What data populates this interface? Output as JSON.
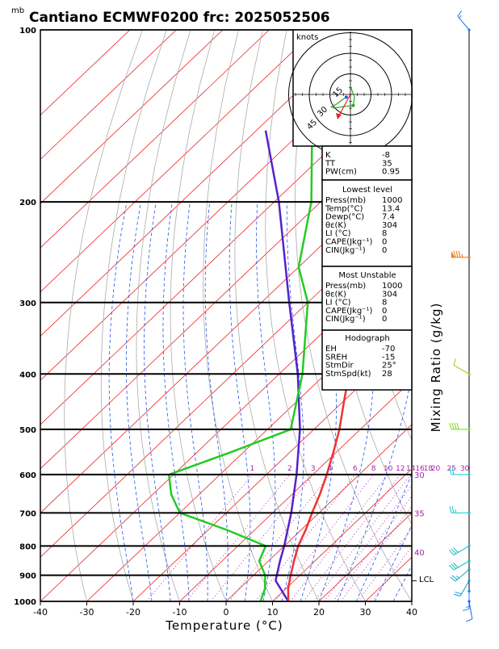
{
  "title": "Cantiano ECMWF0200  frc: 2025052506",
  "pressure_unit": "mb",
  "x_axis_label": "Temperature (°C)",
  "mixing_ratio_label": "Mixing Ratio (g/kg)",
  "hodograph": {
    "unit_label": "knots",
    "ring_labels": [
      "15",
      "30",
      "45"
    ]
  },
  "indices": [
    {
      "label": "K",
      "value": "-8"
    },
    {
      "label": "TT",
      "value": "35"
    },
    {
      "label": "PW(cm)",
      "value": "0.95"
    }
  ],
  "lowest_level": {
    "title": "Lowest level",
    "rows": [
      {
        "label": "Press(mb)",
        "value": "1000"
      },
      {
        "label": "Temp(°C)",
        "value": "13.4"
      },
      {
        "label": "Dewp(°C)",
        "value": "7.4"
      },
      {
        "label": "θε(K)",
        "value": "304"
      },
      {
        "label": "LI (°C)",
        "value": "8"
      },
      {
        "label": "CAPE(Jkg⁻¹)",
        "value": "0"
      },
      {
        "label": "CIN(Jkg⁻¹)",
        "value": "0"
      }
    ]
  },
  "most_unstable": {
    "title": "Most Unstable",
    "rows": [
      {
        "label": "Press(mb)",
        "value": "1000"
      },
      {
        "label": "θε(K)",
        "value": "304"
      },
      {
        "label": "LI (°C)",
        "value": "8"
      },
      {
        "label": "CAPE(Jkg⁻¹)",
        "value": "0"
      },
      {
        "label": "CIN(Jkg⁻¹)",
        "value": "0"
      }
    ]
  },
  "hodograph_table": {
    "title": "Hodograph",
    "rows": [
      {
        "label": "EH",
        "value": "-70"
      },
      {
        "label": "SREH",
        "value": "-15"
      },
      {
        "label": "StmDir",
        "value": "25°"
      },
      {
        "label": "StmSpd(kt)",
        "value": "28"
      }
    ]
  },
  "lcl_label": "LCL",
  "colors": {
    "temperature": "#ee3333",
    "dewpoint": "#22cc22",
    "parcel": "#5522cc",
    "isotherm": "#ee2222",
    "dry_adiabat": "#aaaaaa",
    "moist_adiabat": "#2255ee",
    "mixing_ratio": "#aa22aa"
  },
  "chart_data": {
    "type": "line",
    "title": "Cantiano ECMWF0200  frc: 2025052506",
    "xlabel": "Temperature (°C)",
    "ylabel": "mb",
    "xlim": [
      -40,
      40
    ],
    "ylim_pressure": [
      1000,
      100
    ],
    "y_ticks": [
      100,
      200,
      300,
      400,
      500,
      600,
      700,
      800,
      900,
      1000
    ],
    "x_ticks": [
      -40,
      -30,
      -20,
      -10,
      0,
      10,
      20,
      30,
      40
    ],
    "mixing_ratio_labels": [
      "1",
      "2",
      "3",
      "4",
      "6",
      "8",
      "10",
      "12",
      "14",
      "16",
      "18",
      "20",
      "25",
      "30"
    ],
    "moist_adiabat_labels": [
      "30",
      "35",
      "40"
    ],
    "temperature_profile": [
      {
        "p": 1000,
        "t": 13.4
      },
      {
        "p": 950,
        "t": 10.5
      },
      {
        "p": 900,
        "t": 8.0
      },
      {
        "p": 850,
        "t": 5.5
      },
      {
        "p": 800,
        "t": 3.0
      },
      {
        "p": 750,
        "t": 1.0
      },
      {
        "p": 700,
        "t": -1.5
      },
      {
        "p": 650,
        "t": -4.0
      },
      {
        "p": 600,
        "t": -7.0
      },
      {
        "p": 550,
        "t": -10.5
      },
      {
        "p": 500,
        "t": -14.5
      },
      {
        "p": 450,
        "t": -19.5
      },
      {
        "p": 400,
        "t": -25.0
      },
      {
        "p": 350,
        "t": -31.5
      },
      {
        "p": 300,
        "t": -39.0
      },
      {
        "p": 260,
        "t": -46.0
      },
      {
        "p": 250,
        "t": -45.0
      },
      {
        "p": 200,
        "t": -46.0
      },
      {
        "p": 150,
        "t": -46.5
      },
      {
        "p": 100,
        "t": -45.0
      }
    ],
    "dewpoint_profile": [
      {
        "p": 1000,
        "t": 7.4
      },
      {
        "p": 950,
        "t": 5.5
      },
      {
        "p": 900,
        "t": 2.5
      },
      {
        "p": 850,
        "t": -2.0
      },
      {
        "p": 800,
        "t": -4.0
      },
      {
        "p": 750,
        "t": -16.0
      },
      {
        "p": 700,
        "t": -30.0
      },
      {
        "p": 650,
        "t": -36.0
      },
      {
        "p": 600,
        "t": -41.0
      },
      {
        "p": 550,
        "t": -33.0
      },
      {
        "p": 500,
        "t": -25.0
      },
      {
        "p": 400,
        "t": -35.0
      },
      {
        "p": 300,
        "t": -50.0
      },
      {
        "p": 260,
        "t": -60.0
      },
      {
        "p": 200,
        "t": -72.0
      },
      {
        "p": 150,
        "t": -88.0
      },
      {
        "p": 100,
        "t": -100.0
      }
    ],
    "parcel_profile": [
      {
        "p": 1000,
        "t": 13.4
      },
      {
        "p": 920,
        "t": 6.0
      },
      {
        "p": 900,
        "t": 5.0
      },
      {
        "p": 850,
        "t": 2.5
      },
      {
        "p": 800,
        "t": 0.0
      },
      {
        "p": 700,
        "t": -6.0
      },
      {
        "p": 600,
        "t": -13.5
      },
      {
        "p": 500,
        "t": -23.0
      },
      {
        "p": 400,
        "t": -36.0
      },
      {
        "p": 300,
        "t": -54.0
      },
      {
        "p": 200,
        "t": -79.0
      },
      {
        "p": 150,
        "t": -98.0
      }
    ],
    "lcl_pressure": 920,
    "hodograph_points": [
      {
        "u": -3,
        "v": -2
      },
      {
        "u": -6,
        "v": -4
      },
      {
        "u": -10,
        "v": -7
      },
      {
        "u": -14,
        "v": -9
      },
      {
        "u": -12,
        "v": -10
      },
      {
        "u": -6,
        "v": -9
      },
      {
        "u": 2,
        "v": -8
      },
      {
        "u": 3,
        "v": -2
      },
      {
        "u": 0,
        "v": 6
      }
    ],
    "wind_barbs": [
      {
        "p": 100,
        "dir": 320,
        "spd": 15,
        "color": "#2277ee"
      },
      {
        "p": 250,
        "dir": 270,
        "spd": 85,
        "color": "#ee7711"
      },
      {
        "p": 400,
        "dir": 300,
        "spd": 10,
        "color": "#bbbb11"
      },
      {
        "p": 500,
        "dir": 270,
        "spd": 40,
        "color": "#77dd11"
      },
      {
        "p": 600,
        "dir": 270,
        "spd": 20,
        "color": "#11cccc"
      },
      {
        "p": 700,
        "dir": 270,
        "spd": 25,
        "color": "#11cccc"
      },
      {
        "p": 800,
        "dir": 240,
        "spd": 30,
        "color": "#11bbbb"
      },
      {
        "p": 850,
        "dir": 240,
        "spd": 30,
        "color": "#11bbbb"
      },
      {
        "p": 880,
        "dir": 230,
        "spd": 25,
        "color": "#11aacc"
      },
      {
        "p": 920,
        "dir": 210,
        "spd": 20,
        "color": "#1199dd"
      },
      {
        "p": 960,
        "dir": 180,
        "spd": 15,
        "color": "#1188ee"
      },
      {
        "p": 1000,
        "dir": 170,
        "spd": 10,
        "color": "#1166ee"
      }
    ]
  }
}
